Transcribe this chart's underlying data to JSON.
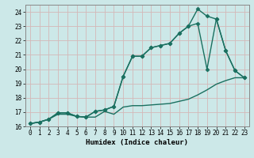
{
  "xlabel": "Humidex (Indice chaleur)",
  "xlim": [
    -0.5,
    23.5
  ],
  "ylim": [
    16,
    24.5
  ],
  "xticks": [
    0,
    1,
    2,
    3,
    4,
    5,
    6,
    7,
    8,
    9,
    10,
    11,
    12,
    13,
    14,
    15,
    16,
    17,
    18,
    19,
    20,
    21,
    22,
    23
  ],
  "yticks": [
    16,
    17,
    18,
    19,
    20,
    21,
    22,
    23,
    24
  ],
  "bg_color": "#cce8e8",
  "grid_color": "#d4b8b8",
  "line_color": "#1a7060",
  "line1_x": [
    0,
    1,
    2,
    3,
    4,
    5,
    6,
    7,
    8,
    9,
    10,
    11,
    12,
    13,
    14,
    15,
    16,
    17,
    18,
    19,
    20,
    21,
    22,
    23
  ],
  "line1_y": [
    16.2,
    16.3,
    16.5,
    16.85,
    16.85,
    16.7,
    16.65,
    16.65,
    17.05,
    16.85,
    17.35,
    17.45,
    17.45,
    17.5,
    17.55,
    17.6,
    17.75,
    17.9,
    18.2,
    18.55,
    18.95,
    19.2,
    19.4,
    19.4
  ],
  "line2_x": [
    0,
    1,
    2,
    3,
    4,
    5,
    6,
    7,
    8,
    9,
    10,
    11,
    12,
    13,
    14,
    15,
    16,
    17,
    18,
    19,
    20,
    21,
    22,
    23
  ],
  "line2_y": [
    16.2,
    16.3,
    16.5,
    16.95,
    16.95,
    16.7,
    16.65,
    17.05,
    17.15,
    17.4,
    19.5,
    20.9,
    20.9,
    21.5,
    21.65,
    21.8,
    22.5,
    23.0,
    23.2,
    20.0,
    23.5,
    21.3,
    19.9,
    19.4
  ],
  "line3_x": [
    0,
    1,
    2,
    3,
    4,
    5,
    6,
    7,
    8,
    9,
    10,
    11,
    12,
    13,
    14,
    15,
    16,
    17,
    18,
    19,
    20,
    21,
    22,
    23
  ],
  "line3_y": [
    16.2,
    16.3,
    16.5,
    16.95,
    16.95,
    16.7,
    16.65,
    17.05,
    17.15,
    17.4,
    19.5,
    20.9,
    20.9,
    21.5,
    21.65,
    21.8,
    22.5,
    23.0,
    24.2,
    23.7,
    23.5,
    21.3,
    19.9,
    19.4
  ],
  "marker": "D",
  "markersize": 2.5,
  "linewidth": 1.0
}
